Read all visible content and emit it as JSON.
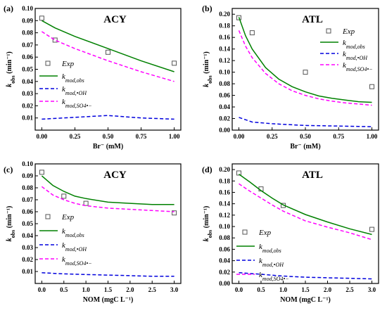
{
  "chart_data": [
    {
      "type": "scatter",
      "panel_label": "(a)",
      "title": "ACY",
      "xlabel": "Br⁻ (mM)",
      "ylabel": "k_obs (min⁻¹)",
      "xlim": [
        -0.05,
        1.05
      ],
      "ylim": [
        0.0,
        0.1
      ],
      "xticks": [
        "0.00",
        "0.25",
        "0.50",
        "0.75",
        "1.00"
      ],
      "xtick_values": [
        0,
        0.25,
        0.5,
        0.75,
        1.0
      ],
      "yticks": [
        "0.01",
        "0.02",
        "0.03",
        "0.04",
        "0.05",
        "0.06",
        "0.07",
        "0.08",
        "0.09",
        "0.10"
      ],
      "ytick_values": [
        0.01,
        0.02,
        0.03,
        0.04,
        0.05,
        0.06,
        0.07,
        0.08,
        0.09,
        0.1
      ],
      "legend_position": "left",
      "series": [
        {
          "name": "Exp",
          "kind": "marker",
          "color": "#555555",
          "x": [
            0,
            0.1,
            0.5,
            1.0
          ],
          "y": [
            0.092,
            0.074,
            0.064,
            0.055
          ]
        },
        {
          "name": "k_mod,obs",
          "kind": "solid",
          "color": "#008000",
          "x": [
            0,
            0.1,
            0.25,
            0.5,
            0.75,
            1.0
          ],
          "y": [
            0.09,
            0.084,
            0.077,
            0.067,
            0.057,
            0.048
          ]
        },
        {
          "name": "k_mod,•OH",
          "kind": "dashed",
          "color": "#0000dd",
          "x": [
            0,
            0.25,
            0.5,
            0.75,
            1.0
          ],
          "y": [
            0.009,
            0.0105,
            0.012,
            0.01,
            0.009
          ]
        },
        {
          "name": "k_mod,SO4•−",
          "kind": "dashed",
          "color": "#ff00ff",
          "x": [
            0,
            0.1,
            0.25,
            0.5,
            0.75,
            1.0
          ],
          "y": [
            0.081,
            0.074,
            0.067,
            0.057,
            0.048,
            0.04
          ]
        }
      ]
    },
    {
      "type": "scatter",
      "panel_label": "(b)",
      "title": "ATL",
      "xlabel": "Br⁻ (mM)",
      "ylabel": "k_obs (min⁻¹)",
      "xlim": [
        -0.05,
        1.05
      ],
      "ylim": [
        0.0,
        0.21
      ],
      "xticks": [
        "0.00",
        "0.25",
        "0.50",
        "0.75",
        "1.00"
      ],
      "xtick_values": [
        0,
        0.25,
        0.5,
        0.75,
        1.0
      ],
      "yticks": [
        "0.00",
        "0.02",
        "0.04",
        "0.06",
        "0.08",
        "0.10",
        "0.12",
        "0.14",
        "0.16",
        "0.18",
        "0.20"
      ],
      "ytick_values": [
        0,
        0.02,
        0.04,
        0.06,
        0.08,
        0.1,
        0.12,
        0.14,
        0.16,
        0.18,
        0.2
      ],
      "legend_position": "top-right",
      "series": [
        {
          "name": "Exp",
          "kind": "marker",
          "color": "#555555",
          "x": [
            0,
            0.1,
            0.5,
            1.0
          ],
          "y": [
            0.194,
            0.168,
            0.1,
            0.075
          ]
        },
        {
          "name": "k_mod,obs",
          "kind": "solid",
          "color": "#008000",
          "x": [
            0,
            0.05,
            0.1,
            0.2,
            0.3,
            0.4,
            0.5,
            0.6,
            0.7,
            0.8,
            0.9,
            1.0
          ],
          "y": [
            0.195,
            0.163,
            0.14,
            0.108,
            0.088,
            0.075,
            0.066,
            0.059,
            0.055,
            0.052,
            0.049,
            0.048
          ]
        },
        {
          "name": "k_mod,•OH",
          "kind": "dashed",
          "color": "#0000dd",
          "x": [
            0,
            0.1,
            0.25,
            0.5,
            0.75,
            1.0
          ],
          "y": [
            0.022,
            0.014,
            0.011,
            0.008,
            0.007,
            0.006
          ]
        },
        {
          "name": "k_mod,SO4•−",
          "kind": "dashed",
          "color": "#ff00ff",
          "x": [
            0,
            0.05,
            0.1,
            0.2,
            0.3,
            0.4,
            0.5,
            0.6,
            0.7,
            0.8,
            0.9,
            1.0
          ],
          "y": [
            0.172,
            0.145,
            0.125,
            0.098,
            0.08,
            0.068,
            0.06,
            0.054,
            0.05,
            0.047,
            0.045,
            0.043
          ]
        }
      ]
    },
    {
      "type": "scatter",
      "panel_label": "(c)",
      "title": "ACY",
      "xlabel": "NOM (mgC L⁻¹)",
      "ylabel": "k_obs (min⁻¹)",
      "xlim": [
        -0.15,
        3.15
      ],
      "ylim": [
        0.0,
        0.1
      ],
      "xticks": [
        "0.0",
        "0.5",
        "1.0",
        "1.5",
        "2.0",
        "2.5",
        "3.0"
      ],
      "xtick_values": [
        0,
        0.5,
        1.0,
        1.5,
        2.0,
        2.5,
        3.0
      ],
      "yticks": [
        "0.01",
        "0.02",
        "0.03",
        "0.04",
        "0.05",
        "0.06",
        "0.07",
        "0.08",
        "0.09",
        "0.10"
      ],
      "ytick_values": [
        0.01,
        0.02,
        0.03,
        0.04,
        0.05,
        0.06,
        0.07,
        0.08,
        0.09,
        0.1
      ],
      "legend_position": "left",
      "series": [
        {
          "name": "Exp",
          "kind": "marker",
          "color": "#555555",
          "x": [
            0,
            0.5,
            1.0,
            3.0
          ],
          "y": [
            0.093,
            0.073,
            0.067,
            0.059
          ]
        },
        {
          "name": "k_mod,obs",
          "kind": "solid",
          "color": "#008000",
          "x": [
            0,
            0.25,
            0.5,
            0.75,
            1.0,
            1.5,
            2.0,
            2.5,
            3.0
          ],
          "y": [
            0.09,
            0.082,
            0.077,
            0.073,
            0.071,
            0.068,
            0.067,
            0.066,
            0.066
          ]
        },
        {
          "name": "k_mod,•OH",
          "kind": "dashed",
          "color": "#0000dd",
          "x": [
            0,
            0.5,
            1.0,
            1.5,
            2.0,
            2.5,
            3.0
          ],
          "y": [
            0.009,
            0.008,
            0.0075,
            0.007,
            0.0065,
            0.006,
            0.006
          ]
        },
        {
          "name": "k_mod,SO4•−",
          "kind": "dashed",
          "color": "#ff00ff",
          "x": [
            0,
            0.25,
            0.5,
            0.75,
            1.0,
            1.5,
            2.0,
            2.5,
            3.0
          ],
          "y": [
            0.081,
            0.074,
            0.07,
            0.067,
            0.065,
            0.063,
            0.062,
            0.061,
            0.06
          ]
        }
      ]
    },
    {
      "type": "scatter",
      "panel_label": "(d)",
      "title": "ATL",
      "xlabel": "NOM (mgC L⁻¹)",
      "ylabel": "k_obs (min⁻¹)",
      "xlim": [
        -0.15,
        3.15
      ],
      "ylim": [
        0.0,
        0.21
      ],
      "xticks": [
        "0.0",
        "0.5",
        "1.0",
        "1.5",
        "2.0",
        "2.5",
        "3.0"
      ],
      "xtick_values": [
        0,
        0.5,
        1.0,
        1.5,
        2.0,
        2.5,
        3.0
      ],
      "yticks": [
        "0.00",
        "0.02",
        "0.04",
        "0.06",
        "0.08",
        "0.10",
        "0.12",
        "0.14",
        "0.16",
        "0.18",
        "0.20"
      ],
      "ytick_values": [
        0,
        0.02,
        0.04,
        0.06,
        0.08,
        0.1,
        0.12,
        0.14,
        0.16,
        0.18,
        0.2
      ],
      "legend_position": "left",
      "series": [
        {
          "name": "Exp",
          "kind": "marker",
          "color": "#555555",
          "x": [
            0,
            0.5,
            1.0,
            3.0
          ],
          "y": [
            0.194,
            0.166,
            0.137,
            0.095
          ]
        },
        {
          "name": "k_mod,obs",
          "kind": "solid",
          "color": "#008000",
          "x": [
            0,
            0.25,
            0.5,
            0.75,
            1.0,
            1.5,
            2.0,
            2.5,
            3.0
          ],
          "y": [
            0.192,
            0.178,
            0.163,
            0.15,
            0.138,
            0.121,
            0.108,
            0.096,
            0.086
          ]
        },
        {
          "name": "k_mod,•OH",
          "kind": "dashed",
          "color": "#0000dd",
          "x": [
            0,
            0.5,
            1.0,
            1.5,
            2.0,
            2.5,
            3.0
          ],
          "y": [
            0.019,
            0.016,
            0.013,
            0.011,
            0.01,
            0.009,
            0.008
          ]
        },
        {
          "name": "k_mod,SO4•−",
          "kind": "dashed",
          "color": "#ff00ff",
          "x": [
            0,
            0.25,
            0.5,
            0.75,
            1.0,
            1.5,
            2.0,
            2.5,
            3.0
          ],
          "y": [
            0.175,
            0.162,
            0.15,
            0.138,
            0.127,
            0.11,
            0.099,
            0.089,
            0.077
          ]
        }
      ]
    }
  ]
}
